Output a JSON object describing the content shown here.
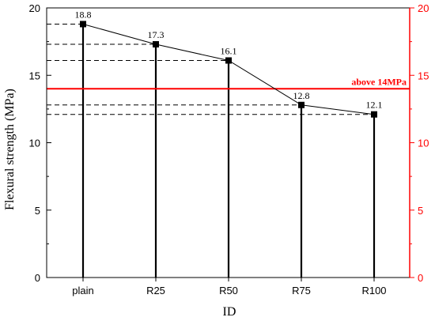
{
  "chart_data": {
    "type": "line",
    "categories": [
      "plain",
      "R25",
      "R50",
      "R75",
      "R100"
    ],
    "series": [
      {
        "values": [
          18.8,
          17.3,
          16.1,
          12.8,
          12.1
        ],
        "labels": [
          "18.8",
          "17.3",
          "16.1",
          "12.8",
          "12.1"
        ]
      }
    ],
    "xlabel": "ID",
    "ylabel": "Flexural strength (MPa)",
    "ylim": [
      0,
      20
    ],
    "yticks": [
      "0",
      "5",
      "10",
      "15",
      "20"
    ],
    "right_axis": {
      "ylim": [
        0,
        20
      ],
      "ticks": [
        "0",
        "5",
        "10",
        "15",
        "20"
      ],
      "color": "#ff0000"
    },
    "threshold": {
      "value": 14,
      "label": "above  14MPa",
      "color": "#ff0000"
    },
    "drop_lines": true,
    "dashed_guides": true,
    "grid": false
  }
}
